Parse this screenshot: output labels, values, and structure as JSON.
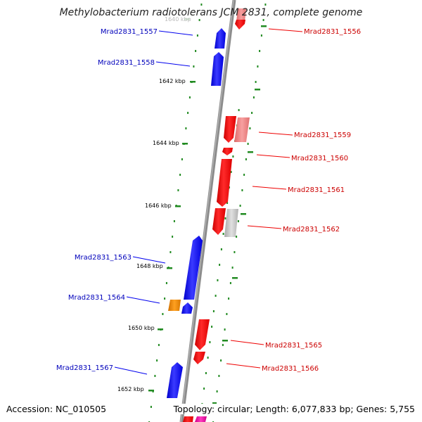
{
  "title": "Methylobacterium radiotolerans JCM 2831, complete genome",
  "footer": {
    "accession": "Accession: NC_010505",
    "topology": "Topology: circular; Length: 6,077,833 bp; Genes: 5,755"
  },
  "ruler": [
    {
      "label": "1640 kbp"
    },
    {
      "label": "1642 kbp"
    },
    {
      "label": "1644 kbp"
    },
    {
      "label": "1646 kbp"
    },
    {
      "label": "1648 kbp"
    },
    {
      "label": "1650 kbp"
    },
    {
      "label": "1652 kbp"
    }
  ],
  "genes": {
    "forward": [
      {
        "label": "Mrad2831_1557"
      },
      {
        "label": "Mrad2831_1558"
      },
      {
        "label": "Mrad2831_1563"
      },
      {
        "label": "Mrad2831_1564"
      },
      {
        "label": "Mrad2831_1567"
      }
    ],
    "reverse": [
      {
        "label": "Mrad2831_1556"
      },
      {
        "label": "Mrad2831_1559"
      },
      {
        "label": "Mrad2831_1560"
      },
      {
        "label": "Mrad2831_1561"
      },
      {
        "label": "Mrad2831_1562"
      },
      {
        "label": "Mrad2831_1565"
      },
      {
        "label": "Mrad2831_1566"
      }
    ]
  },
  "colors": {
    "forward_cds": "#0000ee",
    "reverse_cds": "#ee0000",
    "forward_label": "#0000bb",
    "reverse_label": "#cc0000",
    "tick": "#228b22",
    "backbone": "#8c8c8c",
    "other_feature": "#e88a00",
    "pseudo": "#c0c0c0",
    "pink_feature": "#f08080"
  }
}
